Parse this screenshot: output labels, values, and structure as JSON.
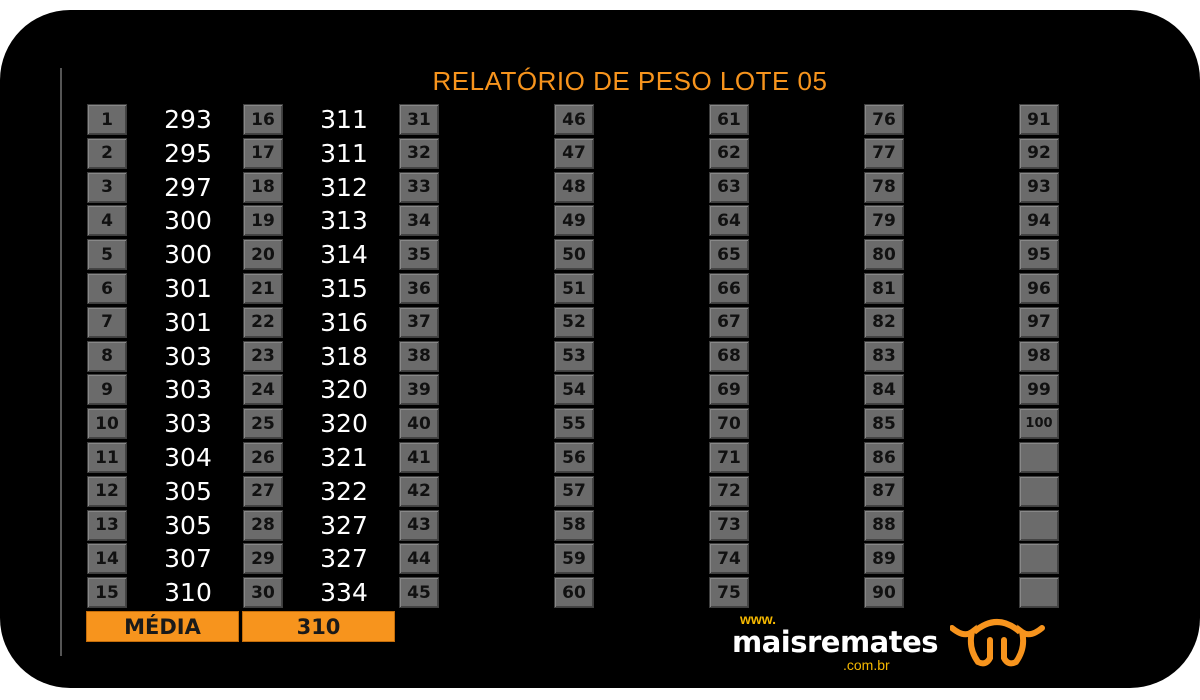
{
  "title": "RELATÓRIO DE PESO LOTE 05",
  "columns": [
    {
      "ids": [
        "1",
        "2",
        "3",
        "4",
        "5",
        "6",
        "7",
        "8",
        "9",
        "10",
        "11",
        "12",
        "13",
        "14",
        "15"
      ],
      "weights": [
        "293",
        "295",
        "297",
        "300",
        "300",
        "301",
        "301",
        "303",
        "303",
        "303",
        "304",
        "305",
        "305",
        "307",
        "310"
      ]
    },
    {
      "ids": [
        "16",
        "17",
        "18",
        "19",
        "20",
        "21",
        "22",
        "23",
        "24",
        "25",
        "26",
        "27",
        "28",
        "29",
        "30"
      ],
      "weights": [
        "311",
        "311",
        "312",
        "313",
        "314",
        "315",
        "316",
        "318",
        "320",
        "320",
        "321",
        "322",
        "327",
        "327",
        "334"
      ]
    },
    {
      "ids": [
        "31",
        "32",
        "33",
        "34",
        "35",
        "36",
        "37",
        "38",
        "39",
        "40",
        "41",
        "42",
        "43",
        "44",
        "45"
      ],
      "weights": []
    },
    {
      "ids": [
        "46",
        "47",
        "48",
        "49",
        "50",
        "51",
        "52",
        "53",
        "54",
        "55",
        "56",
        "57",
        "58",
        "59",
        "60"
      ],
      "weights": []
    },
    {
      "ids": [
        "61",
        "62",
        "63",
        "64",
        "65",
        "66",
        "67",
        "68",
        "69",
        "70",
        "71",
        "72",
        "73",
        "74",
        "75"
      ],
      "weights": []
    },
    {
      "ids": [
        "76",
        "77",
        "78",
        "79",
        "80",
        "81",
        "82",
        "83",
        "84",
        "85",
        "86",
        "87",
        "88",
        "89",
        "90"
      ],
      "weights": []
    },
    {
      "ids": [
        "91",
        "92",
        "93",
        "94",
        "95",
        "96",
        "97",
        "98",
        "99",
        "100",
        "",
        "",
        "",
        "",
        ""
      ],
      "weights": []
    }
  ],
  "media": {
    "label": "MÉDIA",
    "value": "310"
  },
  "logo": {
    "www": "www.",
    "brand": "maisremates",
    "domain": ".com.br",
    "icon": "bull-horns-icon"
  },
  "colors": {
    "accent": "#f7941d",
    "box": "#6b6b6b",
    "background": "#000000"
  }
}
